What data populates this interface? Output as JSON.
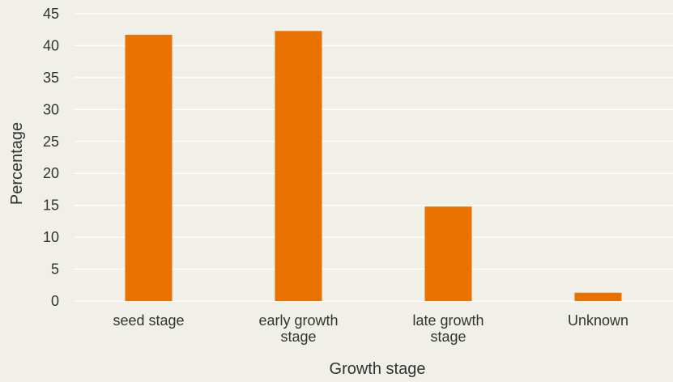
{
  "chart_data": {
    "type": "bar",
    "categories": [
      [
        "seed stage"
      ],
      [
        "early growth",
        "stage"
      ],
      [
        "late growth",
        "stage"
      ],
      [
        "Unknown"
      ]
    ],
    "values": [
      41.7,
      42.3,
      14.8,
      1.3
    ],
    "xlabel": "Growth stage",
    "ylabel": "Percentage",
    "ylim": [
      0,
      45
    ],
    "yticks": [
      0,
      5,
      10,
      15,
      20,
      25,
      30,
      35,
      40,
      45
    ],
    "grid": true,
    "colors": {
      "bar": "#e87100",
      "grid": "#ffffff",
      "background": "#f0efe8",
      "text": "#333333"
    }
  }
}
